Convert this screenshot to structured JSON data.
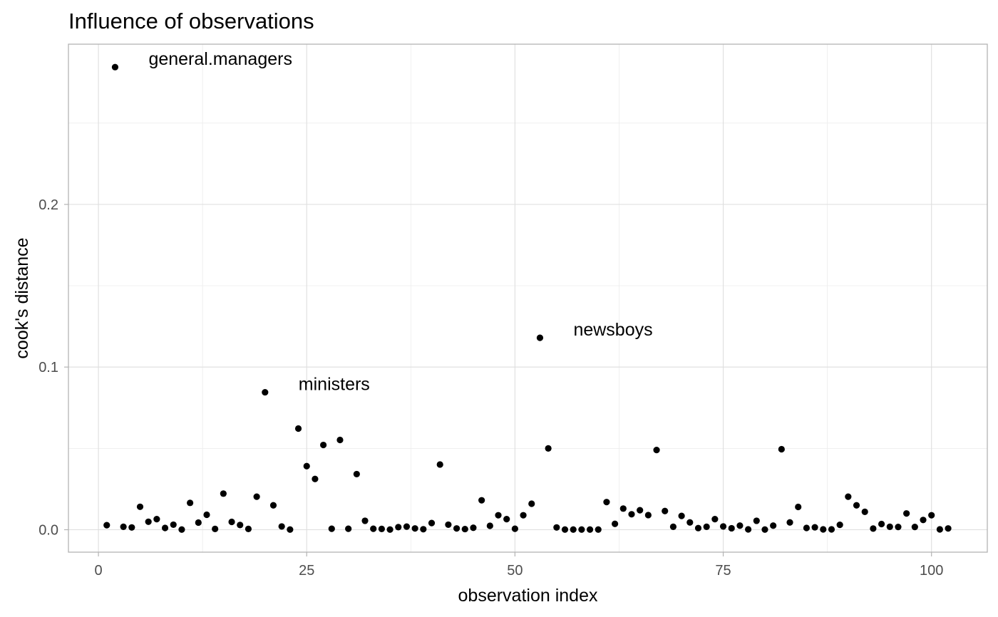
{
  "chart_data": {
    "type": "scatter",
    "title": "Influence of observations",
    "xlabel": "observation index",
    "ylabel": "cook's distance",
    "xlim": [
      -3.6,
      106.7
    ],
    "ylim": [
      -0.0138,
      0.2985
    ],
    "x_ticks": [
      0,
      25,
      50,
      75,
      100
    ],
    "x_tick_labels": [
      "0",
      "25",
      "50",
      "75",
      "100"
    ],
    "y_ticks": [
      0.0,
      0.1,
      0.2
    ],
    "y_tick_labels": [
      "0.0",
      "0.1",
      "0.2"
    ],
    "grid": true,
    "legend": "none",
    "point_color": "#000000",
    "points": [
      [
        1,
        0.0028
      ],
      [
        2,
        0.2844
      ],
      [
        3,
        0.0018
      ],
      [
        4,
        0.0014
      ],
      [
        5,
        0.0141
      ],
      [
        6,
        0.0049
      ],
      [
        7,
        0.0065
      ],
      [
        8,
        0.0011
      ],
      [
        9,
        0.0031
      ],
      [
        10,
        0.0001
      ],
      [
        11,
        0.0165
      ],
      [
        12,
        0.0044
      ],
      [
        13,
        0.0092
      ],
      [
        14,
        0.0005
      ],
      [
        15,
        0.0222
      ],
      [
        16,
        0.0048
      ],
      [
        17,
        0.0029
      ],
      [
        18,
        0.0005
      ],
      [
        19,
        0.0203
      ],
      [
        20,
        0.0845
      ],
      [
        21,
        0.015
      ],
      [
        22,
        0.002
      ],
      [
        23,
        0.0001
      ],
      [
        24,
        0.0622
      ],
      [
        25,
        0.0391
      ],
      [
        26,
        0.0312
      ],
      [
        27,
        0.0521
      ],
      [
        28,
        0.0006
      ],
      [
        29,
        0.0552
      ],
      [
        30,
        0.0006
      ],
      [
        31,
        0.0342
      ],
      [
        32,
        0.0055
      ],
      [
        33,
        0.0006
      ],
      [
        34,
        0.0005
      ],
      [
        35,
        0.0001
      ],
      [
        36,
        0.0016
      ],
      [
        37,
        0.0019
      ],
      [
        38,
        0.0008
      ],
      [
        39,
        0.0003
      ],
      [
        40,
        0.0041
      ],
      [
        41,
        0.0401
      ],
      [
        42,
        0.0031
      ],
      [
        43,
        0.0008
      ],
      [
        44,
        0.0004
      ],
      [
        45,
        0.0012
      ],
      [
        46,
        0.0181
      ],
      [
        47,
        0.0024
      ],
      [
        48,
        0.0089
      ],
      [
        49,
        0.0065
      ],
      [
        50,
        0.0006
      ],
      [
        51,
        0.0089
      ],
      [
        52,
        0.016
      ],
      [
        53,
        0.118
      ],
      [
        54,
        0.05
      ],
      [
        55,
        0.0014
      ],
      [
        56,
        0.0001
      ],
      [
        57,
        0.0001
      ],
      [
        58,
        0.0001
      ],
      [
        59,
        0.0001
      ],
      [
        60,
        0.0001
      ],
      [
        61,
        0.017
      ],
      [
        62,
        0.0036
      ],
      [
        63,
        0.013
      ],
      [
        64,
        0.0095
      ],
      [
        65,
        0.012
      ],
      [
        66,
        0.009
      ],
      [
        67,
        0.049
      ],
      [
        68,
        0.0115
      ],
      [
        69,
        0.0018
      ],
      [
        70,
        0.0085
      ],
      [
        71,
        0.0045
      ],
      [
        72,
        0.001
      ],
      [
        73,
        0.0018
      ],
      [
        74,
        0.0065
      ],
      [
        75,
        0.002
      ],
      [
        76,
        0.0009
      ],
      [
        77,
        0.0025
      ],
      [
        78,
        0.0002
      ],
      [
        79,
        0.0055
      ],
      [
        80,
        0.0001
      ],
      [
        81,
        0.0025
      ],
      [
        82,
        0.0495
      ],
      [
        83,
        0.0045
      ],
      [
        84,
        0.014
      ],
      [
        85,
        0.0011
      ],
      [
        86,
        0.0015
      ],
      [
        87,
        0.0002
      ],
      [
        88,
        0.0002
      ],
      [
        89,
        0.003
      ],
      [
        90,
        0.0203
      ],
      [
        91,
        0.015
      ],
      [
        92,
        0.011
      ],
      [
        93,
        0.0007
      ],
      [
        94,
        0.0035
      ],
      [
        95,
        0.0018
      ],
      [
        96,
        0.0017
      ],
      [
        97,
        0.01
      ],
      [
        98,
        0.0017
      ],
      [
        99,
        0.006
      ],
      [
        100,
        0.0089
      ],
      [
        101,
        0.0002
      ],
      [
        102,
        0.0008
      ]
    ],
    "annotations": [
      {
        "text": "general.managers",
        "x": 2,
        "y": 0.2844
      },
      {
        "text": "ministers",
        "x": 20,
        "y": 0.0845
      },
      {
        "text": "newsboys",
        "x": 53,
        "y": 0.118
      }
    ]
  }
}
